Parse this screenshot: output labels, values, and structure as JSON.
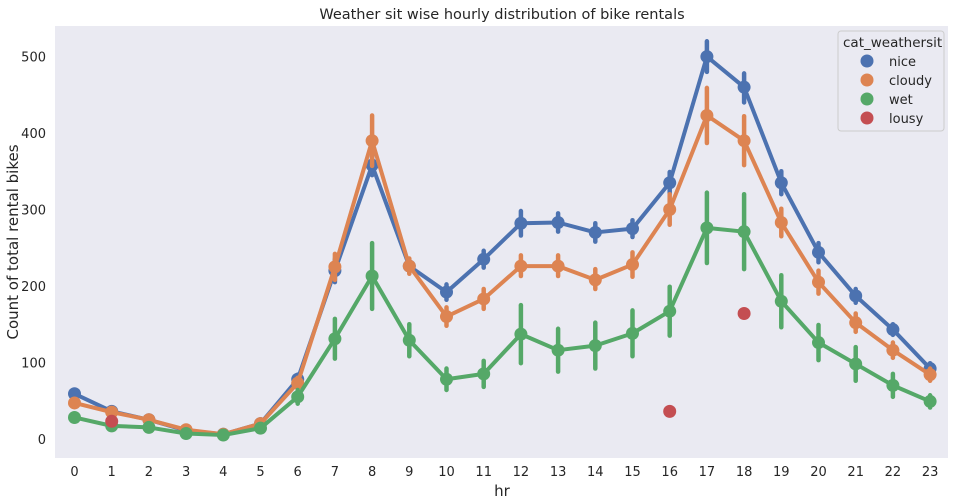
{
  "chart_data": {
    "type": "line",
    "title": "Weather sit wise hourly distribution of bike rentals",
    "xlabel": "hr",
    "ylabel": "Count of total rental bikes",
    "categories": [
      "0",
      "1",
      "2",
      "3",
      "4",
      "5",
      "6",
      "7",
      "8",
      "9",
      "10",
      "11",
      "12",
      "13",
      "14",
      "15",
      "16",
      "17",
      "18",
      "19",
      "20",
      "21",
      "22",
      "23"
    ],
    "ylim": [
      -25,
      540
    ],
    "yticks": [
      0,
      100,
      200,
      300,
      400,
      500
    ],
    "grid": false,
    "legend": {
      "title": "cat_weathersit",
      "placement": "top-right"
    },
    "series": [
      {
        "name": "nice",
        "color": "#4c72b0",
        "values": [
          59,
          36,
          25,
          11,
          6,
          20,
          78,
          220,
          358,
          226,
          192,
          235,
          282,
          283,
          270,
          275,
          335,
          500,
          460,
          335,
          244,
          187,
          143,
          92
        ],
        "ci": [
          [
            55,
            63
          ],
          [
            33,
            39
          ],
          [
            23,
            27
          ],
          [
            9,
            13
          ],
          [
            5,
            7
          ],
          [
            18,
            22
          ],
          [
            72,
            84
          ],
          [
            205,
            235
          ],
          [
            345,
            372
          ],
          [
            218,
            234
          ],
          [
            182,
            202
          ],
          [
            224,
            246
          ],
          [
            266,
            298
          ],
          [
            271,
            295
          ],
          [
            258,
            282
          ],
          [
            264,
            286
          ],
          [
            321,
            349
          ],
          [
            480,
            520
          ],
          [
            440,
            478
          ],
          [
            320,
            350
          ],
          [
            231,
            256
          ],
          [
            178,
            196
          ],
          [
            136,
            150
          ],
          [
            85,
            99
          ]
        ]
      },
      {
        "name": "cloudy",
        "color": "#dd8452",
        "values": [
          47,
          35,
          25,
          12,
          6,
          20,
          73,
          225,
          390,
          226,
          160,
          183,
          226,
          226,
          208,
          228,
          300,
          423,
          390,
          283,
          205,
          152,
          116,
          84
        ],
        "ci": [
          [
            42,
            52
          ],
          [
            31,
            39
          ],
          [
            22,
            28
          ],
          [
            10,
            14
          ],
          [
            5,
            7
          ],
          [
            17,
            23
          ],
          [
            66,
            80
          ],
          [
            208,
            242
          ],
          [
            357,
            423
          ],
          [
            216,
            236
          ],
          [
            148,
            172
          ],
          [
            170,
            196
          ],
          [
            213,
            240
          ],
          [
            213,
            240
          ],
          [
            196,
            222
          ],
          [
            212,
            244
          ],
          [
            280,
            320
          ],
          [
            387,
            459
          ],
          [
            358,
            422
          ],
          [
            265,
            301
          ],
          [
            190,
            220
          ],
          [
            140,
            164
          ],
          [
            106,
            126
          ],
          [
            76,
            92
          ]
        ]
      },
      {
        "name": "wet",
        "color": "#55a868",
        "values": [
          28,
          17,
          15,
          7,
          5,
          14,
          55,
          131,
          213,
          129,
          78,
          85,
          137,
          116,
          122,
          138,
          167,
          276,
          271,
          180,
          126,
          98,
          70,
          49
        ],
        "ci": [
          [
            24,
            32
          ],
          [
            14,
            20
          ],
          [
            13,
            17
          ],
          [
            6,
            8
          ],
          [
            4,
            6
          ],
          [
            12,
            16
          ],
          [
            46,
            64
          ],
          [
            105,
            157
          ],
          [
            170,
            256
          ],
          [
            108,
            150
          ],
          [
            64,
            92
          ],
          [
            68,
            102
          ],
          [
            99,
            175
          ],
          [
            88,
            144
          ],
          [
            92,
            152
          ],
          [
            108,
            168
          ],
          [
            135,
            199
          ],
          [
            230,
            322
          ],
          [
            222,
            320
          ],
          [
            146,
            214
          ],
          [
            103,
            149
          ],
          [
            76,
            120
          ],
          [
            55,
            85
          ],
          [
            41,
            57
          ]
        ]
      },
      {
        "name": "lousy",
        "color": "#c44e52",
        "points": [
          [
            1,
            23
          ],
          [
            16,
            36
          ],
          [
            18,
            164
          ]
        ]
      }
    ]
  }
}
